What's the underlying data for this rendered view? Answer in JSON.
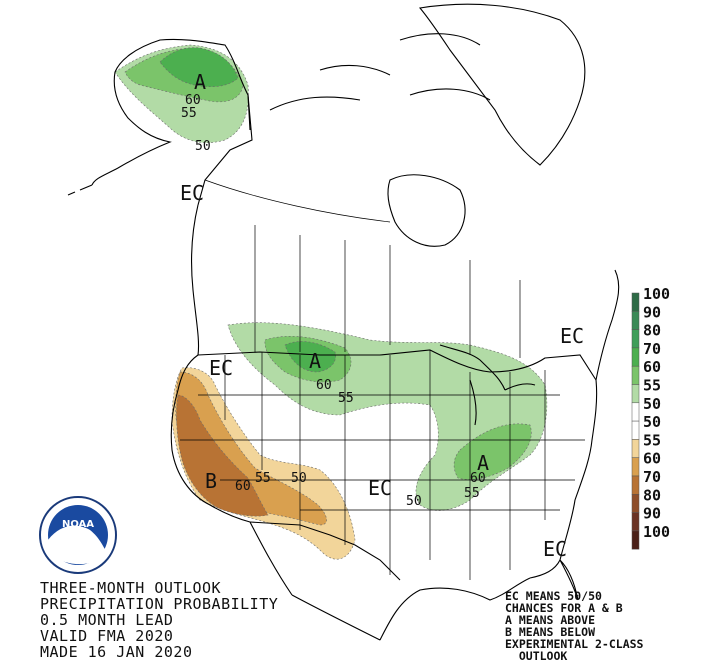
{
  "title_lines": [
    "THREE-MONTH OUTLOOK",
    "PRECIPITATION PROBABILITY",
    "0.5 MONTH LEAD",
    "VALID FMA 2020",
    "MADE 16 JAN 2020"
  ],
  "notes": [
    "EC MEANS 50/50",
    "CHANCES FOR A & B",
    "A MEANS ABOVE",
    "B MEANS BELOW",
    "EXPERIMENTAL 2-CLASS",
    "  OUTLOOK"
  ],
  "legend": [
    {
      "value": "100",
      "color": "#2e6b46"
    },
    {
      "value": "90",
      "color": "#3b8a57"
    },
    {
      "value": "80",
      "color": "#3f9e5a"
    },
    {
      "value": "70",
      "color": "#4caf4f"
    },
    {
      "value": "60",
      "color": "#7bc46a"
    },
    {
      "value": "55",
      "color": "#b2dba6"
    },
    {
      "value": "50",
      "color": "#ffffff"
    },
    {
      "value": "50",
      "color": "#ffffff"
    },
    {
      "value": "55",
      "color": "#f2d59a"
    },
    {
      "value": "60",
      "color": "#d9a04f"
    },
    {
      "value": "70",
      "color": "#b87334"
    },
    {
      "value": "80",
      "color": "#8e4e2a"
    },
    {
      "value": "90",
      "color": "#6a3324"
    },
    {
      "value": "100",
      "color": "#4a2119"
    }
  ],
  "colors": {
    "above_55": "#b2dba6",
    "above_60": "#7bc46a",
    "above_70": "#4caf4f",
    "below_55": "#f2d59a",
    "below_60": "#d9a04f",
    "below_70": "#b87334"
  },
  "map_labels": {
    "alaska_a": "A",
    "alaska_60": "60",
    "alaska_55": "55",
    "alaska_50": "50",
    "alaska_ec": "EC",
    "northern_plains_a": "A",
    "northern_plains_60": "60",
    "northern_plains_55": "55",
    "northwest_ec": "EC",
    "southwest_b": "B",
    "southwest_60": "60",
    "southwest_55": "55",
    "southwest_50": "50",
    "south_central_ec": "EC",
    "south_central_50": "50",
    "ohio_valley_a": "A",
    "ohio_valley_60": "60",
    "ohio_valley_55": "55",
    "northeast_ec": "EC",
    "florida_ec": "EC"
  },
  "logo": {
    "text": "NOAA"
  }
}
